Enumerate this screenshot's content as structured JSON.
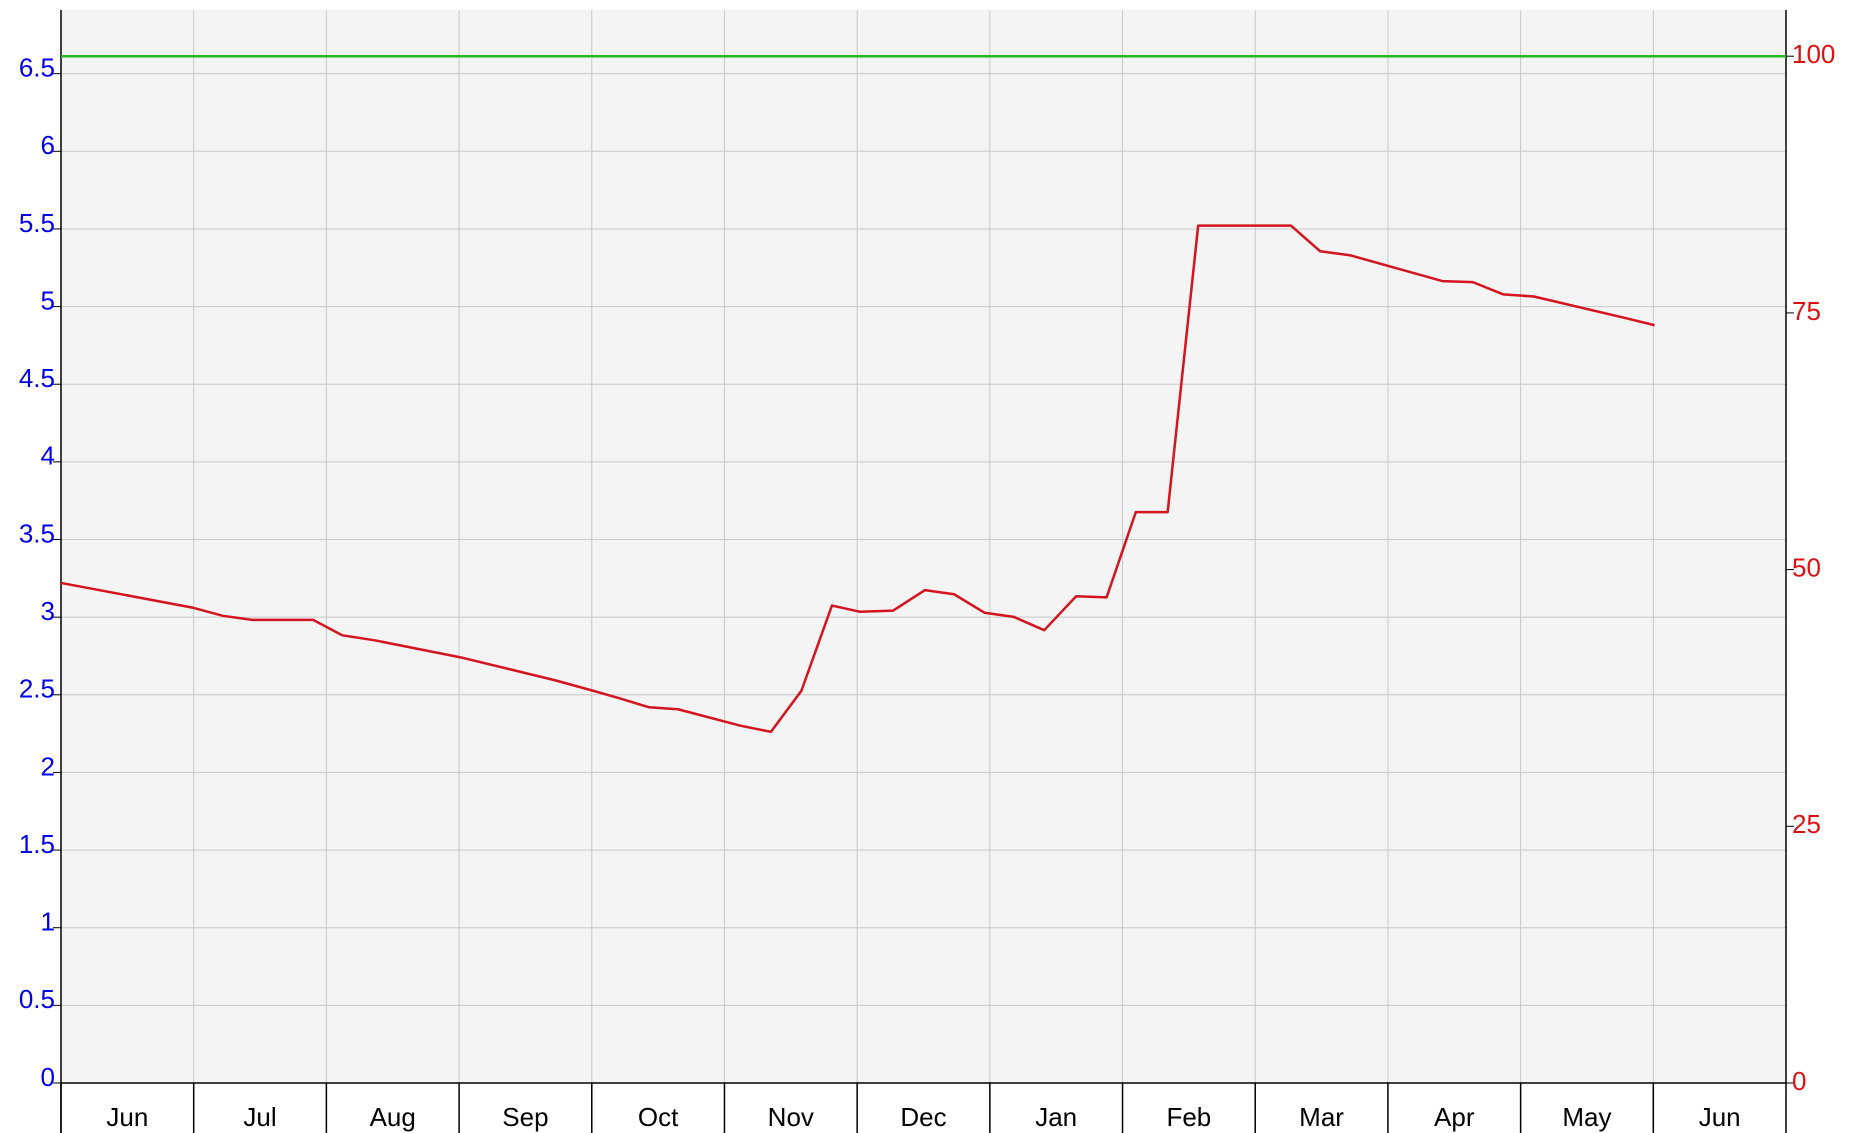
{
  "chart_data": {
    "type": "line",
    "categories": [
      "Jun",
      "Jul",
      "Aug",
      "Sep",
      "Oct",
      "Nov",
      "Dec",
      "Jan",
      "Feb",
      "Mar",
      "Apr",
      "May",
      "Jun"
    ],
    "xlim": [
      0,
      13
    ],
    "ylim": [
      0,
      6.91
    ],
    "yticks": [
      0,
      0.5,
      1,
      {
        "value": 1.5,
        "label": "1.5"
      },
      2,
      2.5,
      3,
      3.5,
      4,
      4.5,
      5,
      5.5,
      6,
      6.5
    ],
    "y2lim": [
      0,
      104.5
    ],
    "y2ticks": [
      0,
      25,
      50,
      75,
      100
    ],
    "grid": true,
    "series": [
      {
        "name": "red",
        "color": "#d4141e",
        "axis": "y2",
        "x": [
          0,
          0.99,
          1.22,
          1.44,
          1.9,
          2.12,
          2.37,
          3.03,
          3.73,
          4.01,
          4.2,
          4.43,
          4.65,
          5.12,
          5.35,
          5.58,
          5.81,
          6.02,
          6.27,
          6.51,
          6.73,
          6.96,
          7.18,
          7.41,
          7.65,
          7.88,
          8.1,
          8.34,
          8.57,
          9.27,
          9.49,
          9.72,
          10.41,
          10.64,
          10.87,
          11.1,
          11.79,
          12.01
        ],
        "values": [
          48.7,
          46.3,
          45.5,
          45.1,
          45.1,
          43.6,
          43.1,
          41.4,
          39.2,
          38.2,
          37.5,
          36.6,
          36.4,
          34.8,
          34.2,
          38.2,
          46.5,
          45.9,
          46.0,
          48.0,
          47.6,
          45.8,
          45.4,
          44.1,
          47.4,
          47.3,
          55.6,
          55.6,
          83.5,
          83.5,
          81.0,
          80.6,
          78.1,
          78.0,
          76.8,
          76.6,
          74.5,
          73.8
        ]
      },
      {
        "name": "green",
        "color": "#22bb22",
        "axis": "y2",
        "x": [
          0,
          13
        ],
        "values": [
          100,
          100
        ]
      }
    ]
  }
}
